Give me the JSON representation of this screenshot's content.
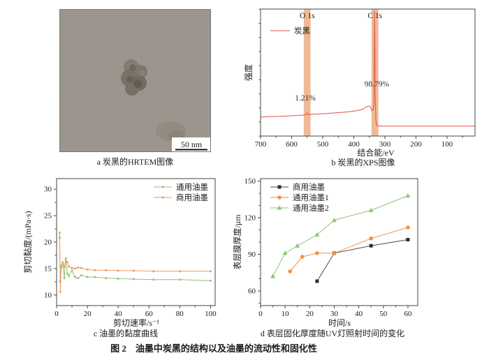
{
  "figure_caption": "图 2　油墨中炭黑的结构以及油墨的流动性和固化性",
  "panel_a": {
    "caption": "a 炭黑的HRTEM图像",
    "scale_bar_label": "50 nm"
  },
  "panel_b": {
    "caption": "b 炭黑的XPS图像"
  },
  "panel_c": {
    "caption": "c 油墨的黏度曲线"
  },
  "panel_d": {
    "caption": "d 表层固化厚度随UV灯照射时间的变化"
  },
  "chart_data": [
    {
      "panel": "b",
      "type": "line",
      "title": "炭黑的XPS图像",
      "xlabel": "结合能/eV",
      "ylabel": "强度",
      "xlim": [
        700,
        10
      ],
      "ylim": [
        0,
        1
      ],
      "x_ticks": [
        700,
        600,
        500,
        400,
        300,
        200,
        100
      ],
      "x_minor_step": 50,
      "y_ticks": [],
      "y_minor_step": 0.111,
      "grid": false,
      "legend_pos": "top-left",
      "bands": [
        {
          "label": "O 1s",
          "center": 550,
          "width": 22,
          "color": "#eaa97b"
        },
        {
          "label": "C 1s",
          "center": 332,
          "width": 22,
          "color": "#eaa97b"
        }
      ],
      "annotations": [
        {
          "text": "1.21%",
          "x": 556,
          "y": 0.28,
          "anchor": "middle"
        },
        {
          "text": "98.79%",
          "x": 326,
          "y": 0.39,
          "anchor": "middle"
        }
      ],
      "series": [
        {
          "name": "炭黑",
          "color": "#e0544b",
          "marker": "none",
          "points": [
            [
              700,
              0.15
            ],
            [
              660,
              0.154
            ],
            [
              620,
              0.157
            ],
            [
              580,
              0.162
            ],
            [
              560,
              0.166
            ],
            [
              553,
              0.17
            ],
            [
              550,
              0.182
            ],
            [
              546,
              0.17
            ],
            [
              530,
              0.172
            ],
            [
              500,
              0.176
            ],
            [
              470,
              0.181
            ],
            [
              440,
              0.186
            ],
            [
              410,
              0.193
            ],
            [
              390,
              0.2
            ],
            [
              375,
              0.207
            ],
            [
              365,
              0.22
            ],
            [
              358,
              0.232
            ],
            [
              352,
              0.236
            ],
            [
              347,
              0.23
            ],
            [
              342,
              0.2
            ],
            [
              338,
              0.204
            ],
            [
              335,
              0.26
            ],
            [
              333,
              0.985
            ],
            [
              331,
              0.3
            ],
            [
              329,
              0.12
            ],
            [
              326,
              0.085
            ],
            [
              322,
              0.078
            ],
            [
              280,
              0.078
            ],
            [
              220,
              0.078
            ],
            [
              150,
              0.078
            ],
            [
              80,
              0.078
            ],
            [
              10,
              0.078
            ]
          ]
        }
      ]
    },
    {
      "panel": "c",
      "type": "line",
      "title": "油墨的黏度曲线",
      "xlabel": "剪切速率/s⁻¹",
      "ylabel": "剪切黏度/(mPa·s)",
      "xlim": [
        0,
        103
      ],
      "ylim": [
        8,
        32
      ],
      "x_ticks": [
        0,
        20,
        40,
        60,
        80,
        100
      ],
      "x_minor_step": 10,
      "y_ticks": [
        10,
        15,
        20,
        25,
        30
      ],
      "y_minor_step": 2.5,
      "grid": false,
      "legend_pos": "top-right",
      "series": [
        {
          "name": "通用油墨",
          "color": "#92c07a",
          "marker": "dot",
          "points": [
            [
              2,
              20.8
            ],
            [
              2.3,
              12.6
            ],
            [
              3,
              15.5
            ],
            [
              4,
              16.2
            ],
            [
              5,
              13.2
            ],
            [
              6,
              16.9
            ],
            [
              7,
              14.0
            ],
            [
              8,
              13.6
            ],
            [
              10,
              14.6
            ],
            [
              12,
              13.4
            ],
            [
              14,
              13.2
            ],
            [
              16,
              13.7
            ],
            [
              20,
              13.4
            ],
            [
              25,
              13.4
            ],
            [
              32,
              13.2
            ],
            [
              40,
              13.1
            ],
            [
              50,
              13.0
            ],
            [
              63,
              12.9
            ],
            [
              80,
              12.9
            ],
            [
              100,
              12.7
            ]
          ]
        },
        {
          "name": "商用油墨",
          "color": "#ee9a5e",
          "marker": "dot",
          "points": [
            [
              2,
              21.8
            ],
            [
              2.4,
              10.6
            ],
            [
              3,
              15.2
            ],
            [
              4,
              15.9
            ],
            [
              5,
              15.3
            ],
            [
              6,
              16.4
            ],
            [
              7,
              16.2
            ],
            [
              8,
              15.4
            ],
            [
              10,
              15.1
            ],
            [
              12,
              15.0
            ],
            [
              14,
              15.2
            ],
            [
              16,
              15.1
            ],
            [
              20,
              14.8
            ],
            [
              25,
              14.7
            ],
            [
              32,
              14.7
            ],
            [
              40,
              14.6
            ],
            [
              50,
              14.6
            ],
            [
              63,
              14.5
            ],
            [
              80,
              14.5
            ],
            [
              100,
              14.5
            ]
          ]
        }
      ]
    },
    {
      "panel": "d",
      "type": "line",
      "title": "表层固化厚度随UV灯照射时间的变化",
      "xlabel": "时间/s",
      "ylabel": "表层膜厚度/μm",
      "xlim": [
        0,
        64
      ],
      "ylim": [
        48,
        152
      ],
      "x_ticks": [
        0,
        10,
        20,
        30,
        40,
        50,
        60
      ],
      "x_minor_step": 5,
      "y_ticks": [
        60,
        90,
        120,
        150
      ],
      "y_minor_step": 10,
      "grid": false,
      "legend_pos": "top-left",
      "series": [
        {
          "name": "商用油墨",
          "color": "#4a4a4a",
          "marker": "square",
          "points": [
            [
              23,
              68
            ],
            [
              30,
              91
            ],
            [
              45,
              97
            ],
            [
              60,
              102
            ]
          ]
        },
        {
          "name": "通用油墨1",
          "color": "#ef9143",
          "marker": "circle",
          "points": [
            [
              12,
              76
            ],
            [
              17,
              88
            ],
            [
              23,
              91
            ],
            [
              30,
              91
            ],
            [
              45,
              103
            ],
            [
              60,
              112
            ]
          ]
        },
        {
          "name": "通用油墨2",
          "color": "#8cc474",
          "marker": "triangle",
          "points": [
            [
              5,
              72
            ],
            [
              10,
              91
            ],
            [
              15,
              97
            ],
            [
              23,
              106
            ],
            [
              30,
              118
            ],
            [
              45,
              126
            ],
            [
              60,
              138
            ]
          ]
        }
      ]
    }
  ]
}
